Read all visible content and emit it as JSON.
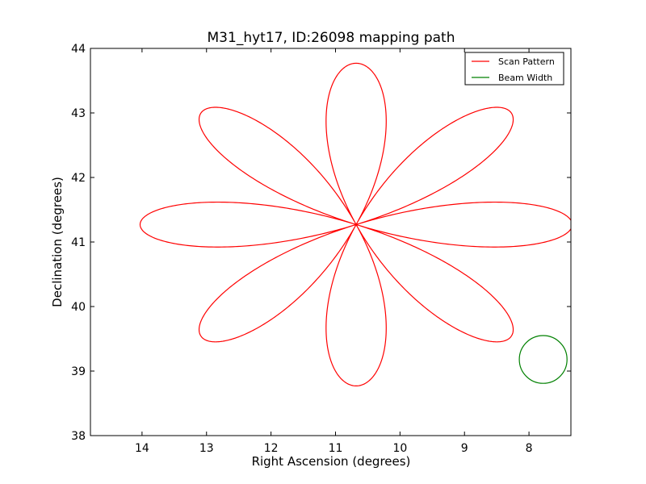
{
  "chart_data": {
    "type": "line",
    "title": "M31_hyt17, ID:26098 mapping path",
    "xlabel": "Right Ascension (degrees)",
    "ylabel": "Declination (degrees)",
    "xlim": [
      14.8,
      7.35
    ],
    "ylim": [
      38,
      44
    ],
    "x_inverted": true,
    "xticks": [
      14,
      13,
      12,
      11,
      10,
      9,
      8
    ],
    "xtick_labels": [
      "14",
      "13",
      "12",
      "11",
      "10",
      "9",
      "8"
    ],
    "yticks": [
      38,
      39,
      40,
      41,
      42,
      43,
      44
    ],
    "ytick_labels": [
      "38",
      "39",
      "40",
      "41",
      "42",
      "43",
      "44"
    ],
    "grid": false,
    "legend_position": "top-right",
    "series": [
      {
        "name": "Scan Pattern",
        "color": "#ff0000",
        "kind": "rose-curve",
        "center": [
          10.68,
          41.27
        ],
        "ra_amplitude": 3.35,
        "dec_amplitude": 2.5,
        "petals": 8
      },
      {
        "name": "Beam Width",
        "color": "#008000",
        "kind": "circle",
        "center": [
          7.78,
          39.18
        ],
        "radius": 0.37
      }
    ]
  }
}
